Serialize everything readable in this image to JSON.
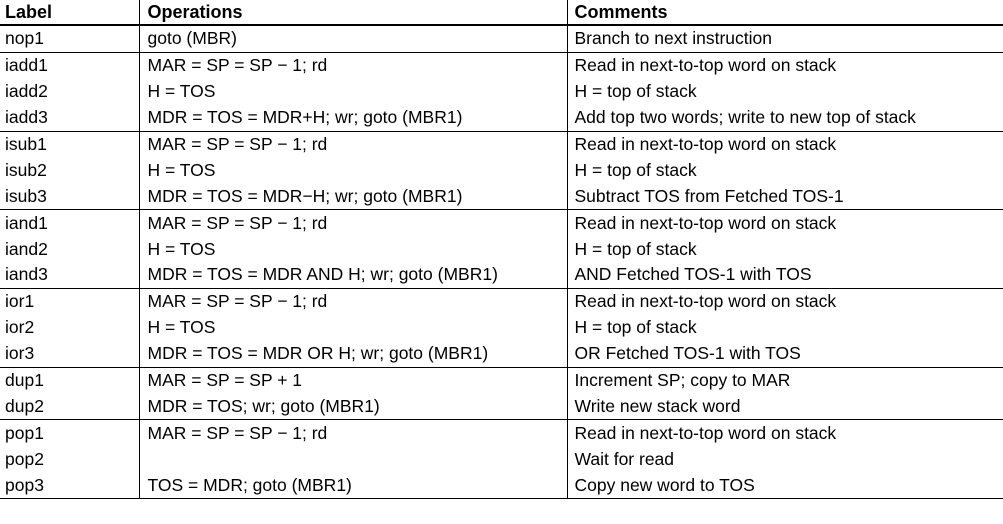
{
  "headers": {
    "label": "Label",
    "operations": "Operations",
    "comments": "Comments"
  },
  "rows": [
    {
      "label": "nop1",
      "operations": "goto (MBR)",
      "comments": "Branch to next instruction"
    },
    {
      "label": "iadd1",
      "operations": "MAR = SP = SP − 1; rd",
      "comments": "Read in next-to-top word on stack"
    },
    {
      "label": "iadd2",
      "operations": "H = TOS",
      "comments": "H = top of stack"
    },
    {
      "label": "iadd3",
      "operations": "MDR = TOS = MDR+H; wr; goto (MBR1)",
      "comments": "Add top two words; write to new top of stack"
    },
    {
      "label": "isub1",
      "operations": "MAR = SP = SP − 1; rd",
      "comments": "Read in next-to-top word on stack"
    },
    {
      "label": "isub2",
      "operations": "H = TOS",
      "comments": "H = top of stack"
    },
    {
      "label": "isub3",
      "operations": "MDR = TOS = MDR−H; wr; goto (MBR1)",
      "comments": "Subtract TOS from Fetched TOS-1"
    },
    {
      "label": "iand1",
      "operations": "MAR = SP = SP − 1; rd",
      "comments": "Read in next-to-top word on stack"
    },
    {
      "label": "iand2",
      "operations": "H = TOS",
      "comments": "H = top of stack"
    },
    {
      "label": "iand3",
      "operations": "MDR = TOS = MDR AND H; wr; goto (MBR1)",
      "comments": "AND Fetched TOS-1 with TOS"
    },
    {
      "label": "ior1",
      "operations": "MAR = SP = SP − 1; rd",
      "comments": "Read in next-to-top word on stack"
    },
    {
      "label": "ior2",
      "operations": "H = TOS",
      "comments": "H = top of stack"
    },
    {
      "label": "ior3",
      "operations": "MDR = TOS = MDR OR H; wr; goto (MBR1)",
      "comments": "OR Fetched TOS-1 with TOS"
    },
    {
      "label": "dup1",
      "operations": "MAR = SP = SP + 1",
      "comments": "Increment SP; copy to MAR"
    },
    {
      "label": "dup2",
      "operations": "MDR = TOS; wr; goto (MBR1)",
      "comments": "Write new stack word"
    },
    {
      "label": "pop1",
      "operations": "MAR = SP = SP − 1; rd",
      "comments": "Read in next-to-top word on stack"
    },
    {
      "label": "pop2",
      "operations": "",
      "comments": "Wait for read"
    },
    {
      "label": "pop3",
      "operations": "TOS = MDR; goto (MBR1)",
      "comments": "Copy new word to TOS"
    }
  ]
}
